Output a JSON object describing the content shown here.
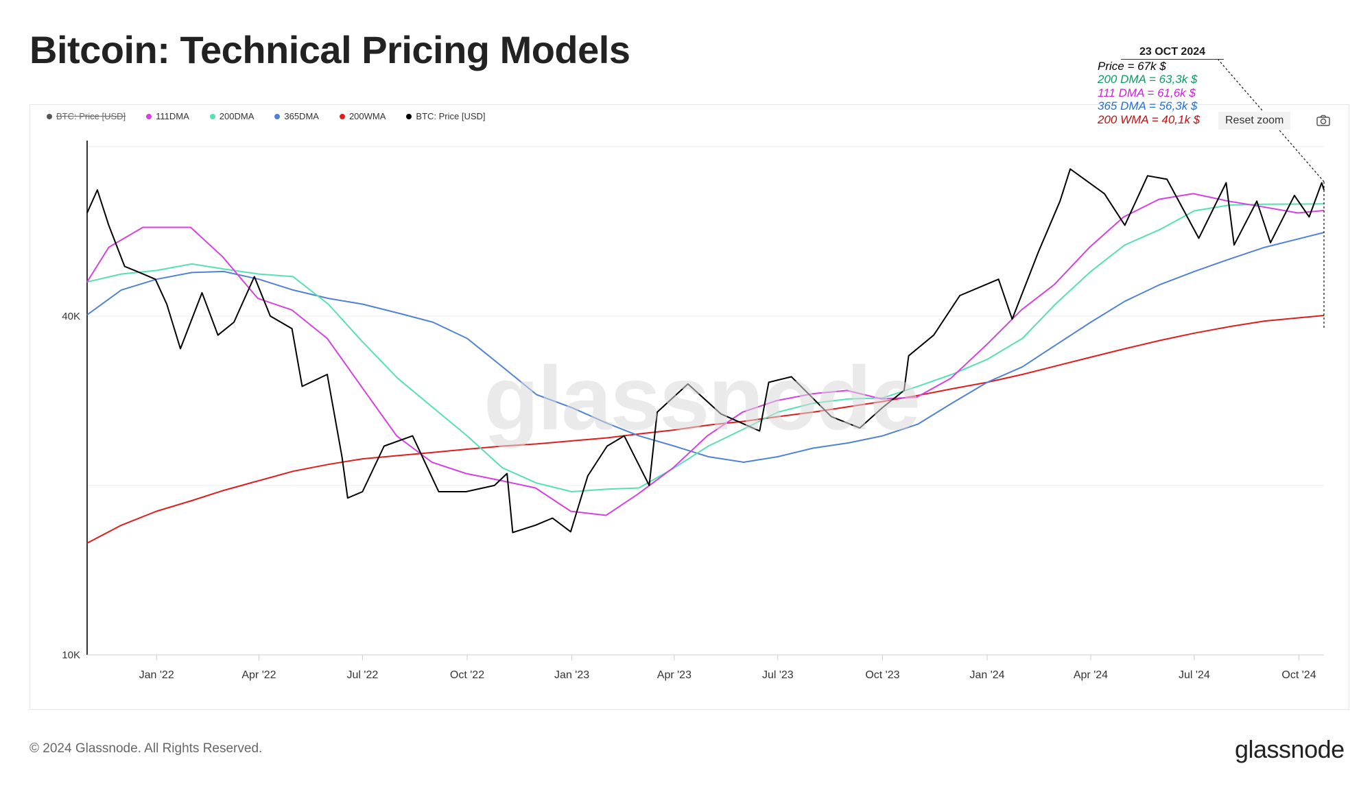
{
  "title": "Bitcoin: Technical Pricing Models",
  "footer": {
    "copyright": "© 2024 Glassnode. All Rights Reserved.",
    "logo": "glassnode"
  },
  "watermark": "glassnode",
  "toolbar": {
    "reset_zoom": "Reset zoom",
    "camera": "camera-icon"
  },
  "legend": [
    {
      "label": "BTC: Price [USD]",
      "color": "#555555",
      "hidden": true
    },
    {
      "label": "111DMA",
      "color": "#d63fe0"
    },
    {
      "label": "200DMA",
      "color": "#55e0b4"
    },
    {
      "label": "365DMA",
      "color": "#4f82d6"
    },
    {
      "label": "200WMA",
      "color": "#e31a1a"
    },
    {
      "label": "BTC: Price [USD]",
      "color": "#000000"
    }
  ],
  "tooltip": {
    "date": "23 OCT 2024",
    "lines": [
      {
        "text": "Price = 67k $",
        "color": "#000000"
      },
      {
        "text": "200 DMA = 63,3k $",
        "color": "#0a9c62"
      },
      {
        "text": "111 DMA = 61,6k $",
        "color": "#d020d8"
      },
      {
        "text": "365 DMA = 56,3k $",
        "color": "#2070e0"
      },
      {
        "text": "200 WMA = 40,1k $",
        "color": "#c01010"
      }
    ]
  },
  "chart_data": {
    "type": "line",
    "title": "Bitcoin: Technical Pricing Models",
    "yscale": "log",
    "ylim": [
      10000,
      82000
    ],
    "y_ticks": [
      {
        "value": 10000,
        "label": "10K"
      },
      {
        "value": 40000,
        "label": "40K"
      }
    ],
    "xlim": [
      "2021-11-01",
      "2024-10-23"
    ],
    "x_ticks": [
      {
        "date": "2022-01-01",
        "label": "Jan '22"
      },
      {
        "date": "2022-04-01",
        "label": "Apr '22"
      },
      {
        "date": "2022-07-01",
        "label": "Jul '22"
      },
      {
        "date": "2022-10-01",
        "label": "Oct '22"
      },
      {
        "date": "2023-01-01",
        "label": "Jan '23"
      },
      {
        "date": "2023-04-01",
        "label": "Apr '23"
      },
      {
        "date": "2023-07-01",
        "label": "Jul '23"
      },
      {
        "date": "2023-10-01",
        "label": "Oct '23"
      },
      {
        "date": "2024-01-01",
        "label": "Jan '24"
      },
      {
        "date": "2024-04-01",
        "label": "Apr '24"
      },
      {
        "date": "2024-07-01",
        "label": "Jul '24"
      },
      {
        "date": "2024-10-01",
        "label": "Oct '24"
      }
    ],
    "series": [
      {
        "name": "BTC: Price [USD]",
        "color": "#000000",
        "width": 2,
        "points": [
          [
            "2021-11-01",
            61000
          ],
          [
            "2021-11-10",
            67000
          ],
          [
            "2021-11-20",
            58000
          ],
          [
            "2021-12-04",
            49000
          ],
          [
            "2021-12-15",
            48000
          ],
          [
            "2021-12-31",
            46500
          ],
          [
            "2022-01-10",
            42000
          ],
          [
            "2022-01-22",
            35000
          ],
          [
            "2022-02-10",
            44000
          ],
          [
            "2022-02-24",
            37000
          ],
          [
            "2022-03-10",
            39000
          ],
          [
            "2022-03-28",
            47000
          ],
          [
            "2022-04-11",
            40000
          ],
          [
            "2022-04-30",
            38000
          ],
          [
            "2022-05-09",
            30000
          ],
          [
            "2022-05-31",
            31500
          ],
          [
            "2022-06-13",
            22500
          ],
          [
            "2022-06-18",
            19000
          ],
          [
            "2022-07-01",
            19500
          ],
          [
            "2022-07-20",
            23500
          ],
          [
            "2022-08-14",
            24500
          ],
          [
            "2022-09-06",
            19500
          ],
          [
            "2022-09-30",
            19500
          ],
          [
            "2022-10-25",
            20000
          ],
          [
            "2022-11-05",
            21000
          ],
          [
            "2022-11-10",
            16500
          ],
          [
            "2022-11-30",
            17000
          ],
          [
            "2022-12-15",
            17500
          ],
          [
            "2022-12-31",
            16550
          ],
          [
            "2023-01-15",
            20800
          ],
          [
            "2023-02-01",
            23500
          ],
          [
            "2023-02-16",
            24500
          ],
          [
            "2023-03-10",
            20000
          ],
          [
            "2023-03-17",
            27000
          ],
          [
            "2023-04-13",
            30300
          ],
          [
            "2023-05-12",
            26800
          ],
          [
            "2023-06-15",
            25000
          ],
          [
            "2023-06-23",
            30500
          ],
          [
            "2023-07-13",
            31200
          ],
          [
            "2023-08-17",
            26500
          ],
          [
            "2023-09-11",
            25300
          ],
          [
            "2023-10-01",
            27500
          ],
          [
            "2023-10-20",
            29500
          ],
          [
            "2023-10-24",
            34000
          ],
          [
            "2023-11-15",
            37000
          ],
          [
            "2023-12-08",
            43500
          ],
          [
            "2024-01-11",
            46500
          ],
          [
            "2024-01-23",
            39500
          ],
          [
            "2024-02-15",
            52000
          ],
          [
            "2024-03-05",
            64000
          ],
          [
            "2024-03-14",
            73000
          ],
          [
            "2024-04-13",
            66000
          ],
          [
            "2024-05-01",
            58000
          ],
          [
            "2024-05-21",
            71000
          ],
          [
            "2024-06-07",
            70000
          ],
          [
            "2024-07-05",
            55000
          ],
          [
            "2024-07-29",
            69000
          ],
          [
            "2024-08-05",
            53500
          ],
          [
            "2024-08-25",
            64000
          ],
          [
            "2024-09-06",
            54000
          ],
          [
            "2024-09-27",
            65500
          ],
          [
            "2024-10-10",
            60000
          ],
          [
            "2024-10-21",
            69000
          ],
          [
            "2024-10-23",
            67000
          ]
        ]
      },
      {
        "name": "111DMA",
        "color": "#d63fe0",
        "width": 2,
        "points": [
          [
            "2021-11-01",
            46000
          ],
          [
            "2021-11-20",
            53000
          ],
          [
            "2021-12-20",
            57500
          ],
          [
            "2022-01-31",
            57500
          ],
          [
            "2022-02-28",
            51000
          ],
          [
            "2022-03-31",
            43000
          ],
          [
            "2022-04-30",
            41000
          ],
          [
            "2022-05-31",
            36500
          ],
          [
            "2022-06-30",
            30000
          ],
          [
            "2022-07-31",
            24500
          ],
          [
            "2022-08-31",
            22000
          ],
          [
            "2022-09-30",
            21000
          ],
          [
            "2022-10-31",
            20400
          ],
          [
            "2022-11-30",
            19800
          ],
          [
            "2022-12-31",
            18000
          ],
          [
            "2023-01-31",
            17700
          ],
          [
            "2023-02-28",
            19300
          ],
          [
            "2023-03-31",
            21500
          ],
          [
            "2023-04-30",
            24500
          ],
          [
            "2023-05-31",
            27000
          ],
          [
            "2023-06-30",
            28300
          ],
          [
            "2023-07-31",
            29100
          ],
          [
            "2023-08-31",
            29500
          ],
          [
            "2023-09-30",
            28500
          ],
          [
            "2023-10-31",
            28700
          ],
          [
            "2023-11-30",
            31000
          ],
          [
            "2023-12-31",
            35500
          ],
          [
            "2024-01-31",
            41000
          ],
          [
            "2024-02-29",
            45500
          ],
          [
            "2024-03-31",
            53000
          ],
          [
            "2024-04-30",
            60000
          ],
          [
            "2024-05-31",
            64500
          ],
          [
            "2024-06-30",
            66000
          ],
          [
            "2024-07-31",
            64000
          ],
          [
            "2024-08-31",
            62500
          ],
          [
            "2024-09-30",
            61000
          ],
          [
            "2024-10-23",
            61600
          ]
        ]
      },
      {
        "name": "200DMA",
        "color": "#55e0b4",
        "width": 2,
        "points": [
          [
            "2021-11-01",
            46000
          ],
          [
            "2021-12-01",
            47500
          ],
          [
            "2022-01-01",
            48200
          ],
          [
            "2022-02-01",
            49500
          ],
          [
            "2022-03-01",
            48500
          ],
          [
            "2022-04-01",
            47500
          ],
          [
            "2022-05-01",
            47000
          ],
          [
            "2022-06-01",
            42000
          ],
          [
            "2022-07-01",
            36000
          ],
          [
            "2022-08-01",
            31000
          ],
          [
            "2022-09-01",
            27500
          ],
          [
            "2022-10-01",
            24500
          ],
          [
            "2022-11-01",
            21500
          ],
          [
            "2022-12-01",
            20200
          ],
          [
            "2023-01-01",
            19500
          ],
          [
            "2023-02-01",
            19700
          ],
          [
            "2023-03-01",
            19800
          ],
          [
            "2023-04-01",
            21500
          ],
          [
            "2023-05-01",
            23500
          ],
          [
            "2023-06-01",
            25200
          ],
          [
            "2023-07-01",
            27000
          ],
          [
            "2023-08-01",
            28000
          ],
          [
            "2023-09-01",
            28500
          ],
          [
            "2023-10-01",
            28600
          ],
          [
            "2023-11-01",
            30000
          ],
          [
            "2023-12-01",
            31500
          ],
          [
            "2024-01-01",
            33500
          ],
          [
            "2024-02-01",
            36500
          ],
          [
            "2024-03-01",
            42000
          ],
          [
            "2024-04-01",
            48000
          ],
          [
            "2024-05-01",
            53500
          ],
          [
            "2024-06-01",
            57000
          ],
          [
            "2024-07-01",
            61500
          ],
          [
            "2024-08-01",
            63000
          ],
          [
            "2024-09-01",
            63200
          ],
          [
            "2024-10-23",
            63300
          ]
        ]
      },
      {
        "name": "365DMA",
        "color": "#4f82d6",
        "width": 2,
        "points": [
          [
            "2021-11-01",
            40200
          ],
          [
            "2021-12-01",
            44500
          ],
          [
            "2022-01-01",
            46500
          ],
          [
            "2022-02-01",
            47800
          ],
          [
            "2022-03-01",
            48000
          ],
          [
            "2022-04-01",
            46500
          ],
          [
            "2022-05-01",
            44500
          ],
          [
            "2022-06-01",
            43000
          ],
          [
            "2022-07-01",
            42000
          ],
          [
            "2022-08-01",
            40500
          ],
          [
            "2022-09-01",
            39000
          ],
          [
            "2022-10-01",
            36500
          ],
          [
            "2022-11-01",
            32500
          ],
          [
            "2022-12-01",
            29000
          ],
          [
            "2023-01-01",
            27500
          ],
          [
            "2023-02-01",
            25800
          ],
          [
            "2023-03-01",
            24500
          ],
          [
            "2023-04-01",
            23500
          ],
          [
            "2023-05-01",
            22500
          ],
          [
            "2023-06-01",
            22000
          ],
          [
            "2023-07-01",
            22500
          ],
          [
            "2023-08-01",
            23300
          ],
          [
            "2023-09-01",
            23800
          ],
          [
            "2023-10-01",
            24500
          ],
          [
            "2023-11-01",
            25700
          ],
          [
            "2023-12-01",
            28000
          ],
          [
            "2024-01-01",
            30500
          ],
          [
            "2024-02-01",
            32500
          ],
          [
            "2024-03-01",
            35500
          ],
          [
            "2024-04-01",
            39000
          ],
          [
            "2024-05-01",
            42500
          ],
          [
            "2024-06-01",
            45500
          ],
          [
            "2024-07-01",
            48000
          ],
          [
            "2024-08-01",
            50500
          ],
          [
            "2024-09-01",
            53000
          ],
          [
            "2024-10-23",
            56300
          ]
        ]
      },
      {
        "name": "200WMA",
        "color": "#e31a1a",
        "width": 2,
        "points": [
          [
            "2021-11-01",
            15800
          ],
          [
            "2021-12-01",
            17000
          ],
          [
            "2022-01-01",
            18000
          ],
          [
            "2022-02-01",
            18800
          ],
          [
            "2022-03-01",
            19600
          ],
          [
            "2022-04-01",
            20400
          ],
          [
            "2022-05-01",
            21200
          ],
          [
            "2022-06-01",
            21800
          ],
          [
            "2022-07-01",
            22300
          ],
          [
            "2022-08-01",
            22600
          ],
          [
            "2022-09-01",
            22900
          ],
          [
            "2022-10-01",
            23200
          ],
          [
            "2022-11-01",
            23500
          ],
          [
            "2022-12-01",
            23700
          ],
          [
            "2023-01-01",
            24000
          ],
          [
            "2023-02-01",
            24300
          ],
          [
            "2023-03-01",
            24700
          ],
          [
            "2023-04-01",
            25100
          ],
          [
            "2023-05-01",
            25600
          ],
          [
            "2023-06-01",
            26000
          ],
          [
            "2023-07-01",
            26500
          ],
          [
            "2023-08-01",
            27000
          ],
          [
            "2023-09-01",
            27600
          ],
          [
            "2023-10-01",
            28200
          ],
          [
            "2023-11-01",
            28900
          ],
          [
            "2023-12-01",
            29700
          ],
          [
            "2024-01-01",
            30500
          ],
          [
            "2024-02-01",
            31500
          ],
          [
            "2024-03-01",
            32600
          ],
          [
            "2024-04-01",
            33800
          ],
          [
            "2024-05-01",
            35000
          ],
          [
            "2024-06-01",
            36200
          ],
          [
            "2024-07-01",
            37300
          ],
          [
            "2024-08-01",
            38300
          ],
          [
            "2024-09-01",
            39200
          ],
          [
            "2024-10-23",
            40100
          ]
        ]
      }
    ]
  }
}
